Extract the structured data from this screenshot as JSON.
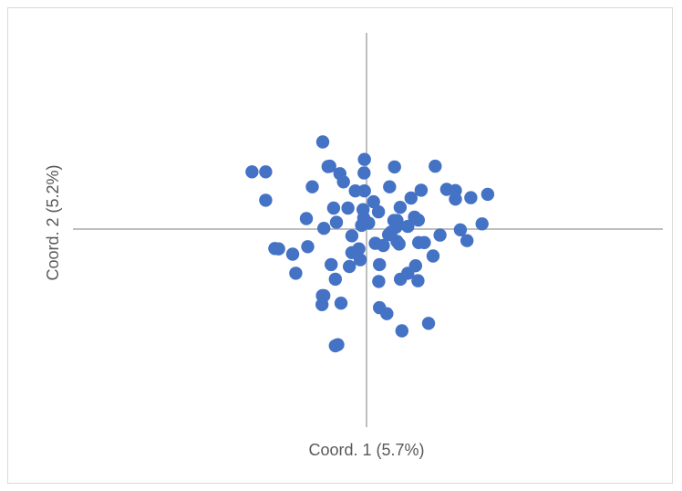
{
  "chart_data": {
    "type": "scatter",
    "xlabel": "Coord. 1 (5.7%)",
    "ylabel": "Coord. 2 (5.2%)",
    "title": "",
    "xlim": [
      -0.42,
      0.42
    ],
    "ylim": [
      -0.35,
      0.35
    ],
    "grid": false,
    "legend": "none",
    "marker_color": "#4472C4",
    "axis_color": "#BFBFBF",
    "series": [
      {
        "points": [
          [
            -0.327,
            0.153
          ],
          [
            -0.288,
            0.153
          ],
          [
            -0.288,
            0.077
          ],
          [
            -0.262,
            -0.052
          ],
          [
            -0.251,
            -0.053
          ],
          [
            -0.211,
            -0.067
          ],
          [
            -0.202,
            -0.118
          ],
          [
            -0.172,
            0.028
          ],
          [
            -0.168,
            -0.047
          ],
          [
            -0.155,
            0.113
          ],
          [
            -0.125,
            0.233
          ],
          [
            -0.122,
            0.002
          ],
          [
            -0.127,
            -0.202
          ],
          [
            -0.122,
            -0.178
          ],
          [
            -0.11,
            0.167
          ],
          [
            -0.105,
            0.168
          ],
          [
            -0.101,
            -0.095
          ],
          [
            -0.094,
            0.056
          ],
          [
            -0.089,
            -0.134
          ],
          [
            -0.086,
            0.018
          ],
          [
            -0.089,
            -0.312
          ],
          [
            -0.082,
            -0.309
          ],
          [
            -0.076,
            0.148
          ],
          [
            -0.073,
            -0.198
          ],
          [
            -0.066,
            0.126
          ],
          [
            -0.053,
            0.056
          ],
          [
            -0.049,
            -0.1
          ],
          [
            -0.042,
            -0.018
          ],
          [
            -0.042,
            -0.063
          ],
          [
            -0.032,
            0.102
          ],
          [
            -0.022,
            -0.053
          ],
          [
            -0.018,
            -0.082
          ],
          [
            -0.014,
            0.01
          ],
          [
            -0.01,
            0.052
          ],
          [
            -0.007,
            0.15
          ],
          [
            -0.006,
            0.186
          ],
          [
            -0.006,
            0.102
          ],
          [
            -0.008,
            0.03
          ],
          [
            0.006,
            0.016
          ],
          [
            0.02,
            0.073
          ],
          [
            0.025,
            -0.038
          ],
          [
            0.037,
            -0.095
          ],
          [
            0.034,
            0.046
          ],
          [
            0.035,
            -0.14
          ],
          [
            0.037,
            -0.21
          ],
          [
            0.048,
            -0.044
          ],
          [
            0.063,
            -0.015
          ],
          [
            0.058,
            -0.226
          ],
          [
            0.07,
            -0.008
          ],
          [
            0.066,
            0.113
          ],
          [
            0.08,
            0.166
          ],
          [
            0.078,
            0.023
          ],
          [
            0.084,
            0.005
          ],
          [
            0.087,
            0.023
          ],
          [
            0.087,
            -0.033
          ],
          [
            0.096,
            0.058
          ],
          [
            0.097,
            -0.134
          ],
          [
            0.093,
            -0.04
          ],
          [
            0.101,
            -0.272
          ],
          [
            0.118,
            0.007
          ],
          [
            0.118,
            -0.118
          ],
          [
            0.127,
            0.083
          ],
          [
            0.137,
            0.032
          ],
          [
            0.14,
            -0.098
          ],
          [
            0.148,
            0.024
          ],
          [
            0.147,
            -0.138
          ],
          [
            0.149,
            -0.036
          ],
          [
            0.156,
            0.104
          ],
          [
            0.165,
            -0.036
          ],
          [
            0.177,
            -0.252
          ],
          [
            0.19,
            -0.072
          ],
          [
            0.196,
            0.168
          ],
          [
            0.21,
            -0.016
          ],
          [
            0.229,
            0.106
          ],
          [
            0.254,
            0.08
          ],
          [
            0.254,
            0.103
          ],
          [
            0.268,
            -0.002
          ],
          [
            0.287,
            -0.031
          ],
          [
            0.298,
            0.084
          ],
          [
            0.33,
            0.014
          ],
          [
            0.346,
            0.093
          ],
          [
            -0.126,
            -0.178
          ]
        ]
      }
    ]
  }
}
